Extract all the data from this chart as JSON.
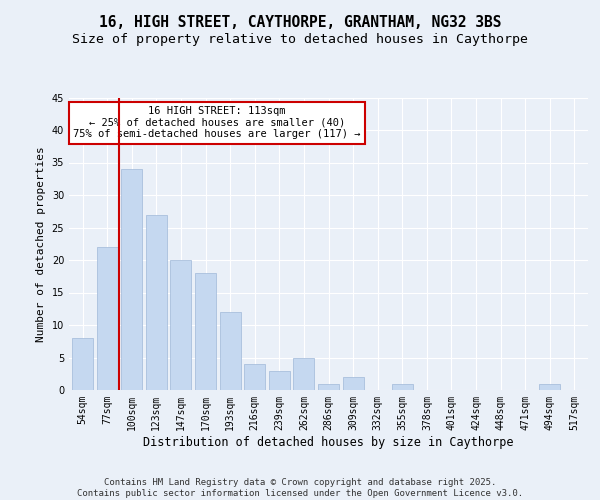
{
  "title_line1": "16, HIGH STREET, CAYTHORPE, GRANTHAM, NG32 3BS",
  "title_line2": "Size of property relative to detached houses in Caythorpe",
  "xlabel": "Distribution of detached houses by size in Caythorpe",
  "ylabel": "Number of detached properties",
  "categories": [
    "54sqm",
    "77sqm",
    "100sqm",
    "123sqm",
    "147sqm",
    "170sqm",
    "193sqm",
    "216sqm",
    "239sqm",
    "262sqm",
    "286sqm",
    "309sqm",
    "332sqm",
    "355sqm",
    "378sqm",
    "401sqm",
    "424sqm",
    "448sqm",
    "471sqm",
    "494sqm",
    "517sqm"
  ],
  "values": [
    8,
    22,
    34,
    27,
    20,
    18,
    12,
    4,
    3,
    5,
    1,
    2,
    0,
    1,
    0,
    0,
    0,
    0,
    0,
    1,
    0
  ],
  "bar_color": "#c5d8f0",
  "bar_edge_color": "#a0b8d8",
  "vline_x": 1.5,
  "vline_color": "#cc0000",
  "annotation_text": "16 HIGH STREET: 113sqm\n← 25% of detached houses are smaller (40)\n75% of semi-detached houses are larger (117) →",
  "annotation_box_color": "#ffffff",
  "annotation_box_edge": "#cc0000",
  "ylim": [
    0,
    45
  ],
  "yticks": [
    0,
    5,
    10,
    15,
    20,
    25,
    30,
    35,
    40,
    45
  ],
  "bg_color": "#eaf0f8",
  "plot_bg_color": "#eaf0f8",
  "footer": "Contains HM Land Registry data © Crown copyright and database right 2025.\nContains public sector information licensed under the Open Government Licence v3.0.",
  "title_fontsize": 10.5,
  "subtitle_fontsize": 9.5,
  "xlabel_fontsize": 8.5,
  "ylabel_fontsize": 8,
  "tick_fontsize": 7,
  "footer_fontsize": 6.5,
  "ann_fontsize": 7.5
}
